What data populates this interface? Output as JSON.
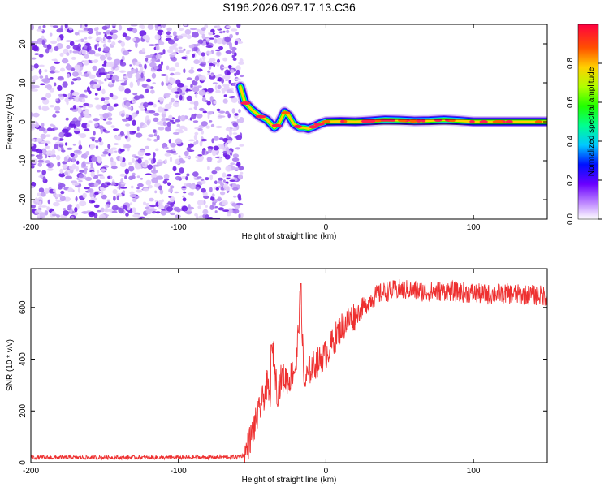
{
  "figure": {
    "title": "S196.2026.097.17.13.C36"
  },
  "chart_data": [
    {
      "type": "heatmap",
      "name": "spectrogram",
      "xlabel": "Height of straight line (km)",
      "ylabel": "Frequency (Hz)",
      "xlim": [
        -200,
        150
      ],
      "ylim": [
        -25,
        25
      ],
      "xticks": [
        -200,
        -100,
        0,
        100
      ],
      "yticks": [
        -20,
        -10,
        0,
        10,
        20
      ],
      "noise_region_x": [
        -200,
        -57
      ],
      "ridge": {
        "description_points_x": [
          -58,
          -55,
          -50,
          -45,
          -40,
          -35,
          -32,
          -28,
          -25,
          -22,
          -18,
          -15,
          -12,
          -8,
          -4,
          0,
          10,
          20,
          30,
          40,
          50,
          60,
          70,
          80,
          90,
          100,
          110,
          120,
          130,
          140,
          150
        ],
        "description_points_y": [
          9,
          5,
          3,
          1.5,
          0.5,
          -1.5,
          -0.5,
          2.5,
          1.5,
          -0.5,
          -1.5,
          -1.5,
          -1.8,
          -1.2,
          -0.5,
          0,
          0.1,
          0,
          0.2,
          0.5,
          0.4,
          0.2,
          0.3,
          0.5,
          0.3,
          0,
          0,
          0,
          0,
          0,
          0
        ]
      },
      "colorbar": {
        "label": "Normalized spectral amplitude",
        "range": [
          0.0,
          1.0
        ],
        "ticks": [
          "0.0",
          "0.2",
          "0.4",
          "0.6",
          "0.8"
        ],
        "tick_values": [
          0.0,
          0.2,
          0.4,
          0.6,
          0.8
        ]
      }
    },
    {
      "type": "line",
      "name": "snr",
      "xlabel": "Height of straight line (km)",
      "ylabel": "SNR (10 * v/v)",
      "xlim": [
        -200,
        150
      ],
      "ylim": [
        0,
        750
      ],
      "xticks": [
        -200,
        -100,
        0,
        100
      ],
      "yticks": [
        0,
        200,
        400,
        600
      ],
      "line_color": "#ee3030",
      "series": [
        {
          "name": "SNR",
          "x": [
            -200,
            -150,
            -100,
            -60,
            -55,
            -45,
            -40,
            -38,
            -36,
            -33,
            -30,
            -25,
            -20,
            -17,
            -15,
            -10,
            -5,
            0,
            5,
            10,
            15,
            20,
            25,
            30,
            35,
            40,
            50,
            60,
            70,
            80,
            90,
            100,
            110,
            120,
            130,
            140,
            150
          ],
          "y": [
            20,
            20,
            20,
            22,
            30,
            200,
            300,
            250,
            440,
            270,
            330,
            320,
            380,
            690,
            300,
            370,
            390,
            420,
            470,
            520,
            550,
            570,
            600,
            630,
            650,
            660,
            670,
            665,
            660,
            665,
            660,
            655,
            650,
            655,
            650,
            648,
            645
          ]
        }
      ],
      "spikes": [
        {
          "x": -37,
          "y": 455
        },
        {
          "x": -17,
          "y": 692
        }
      ]
    }
  ]
}
